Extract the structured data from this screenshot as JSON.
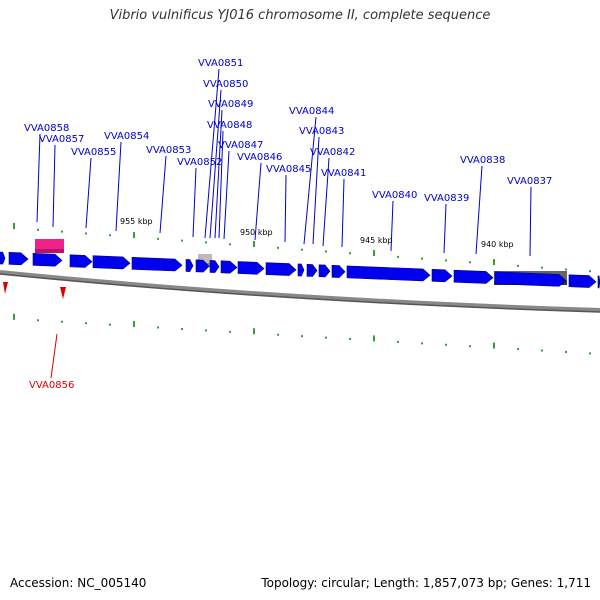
{
  "title": "Vibrio vulnificus YJ016 chromosome II, complete sequence",
  "footer": {
    "accession_label": "Accession:",
    "accession_value": "NC_005140",
    "topology_label": "Topology:",
    "topology_value": "circular",
    "length_label": "Length:",
    "length_value": "1,857,073 bp",
    "genes_label": "Genes:",
    "genes_value": "1,711"
  },
  "colors": {
    "forward_gene": "#0000ee",
    "reverse_gene": "#ee0000",
    "label_blue": "#0000cc",
    "label_red": "#dd0000",
    "highlight_pink": "#ee2288",
    "feature_gray": "#999999",
    "feature_dark": "#555555",
    "tick": "#008800",
    "backbone": "#888888"
  },
  "scale_labels": [
    "955 kbp",
    "950 kbp",
    "945 kbp",
    "940 kbp"
  ],
  "gene_labels_forward": [
    "VVA0858",
    "VVA0857",
    "VVA0855",
    "VVA0854",
    "VVA0853",
    "VVA0852",
    "VVA0851",
    "VVA0850",
    "VVA0849",
    "VVA0848",
    "VVA0847",
    "VVA0846",
    "VVA0845",
    "VVA0844",
    "VVA0843",
    "VVA0842",
    "VVA0841",
    "VVA0840",
    "VVA0839",
    "VVA0838",
    "VVA0837"
  ],
  "gene_labels_reverse": [
    "VVA0856"
  ]
}
